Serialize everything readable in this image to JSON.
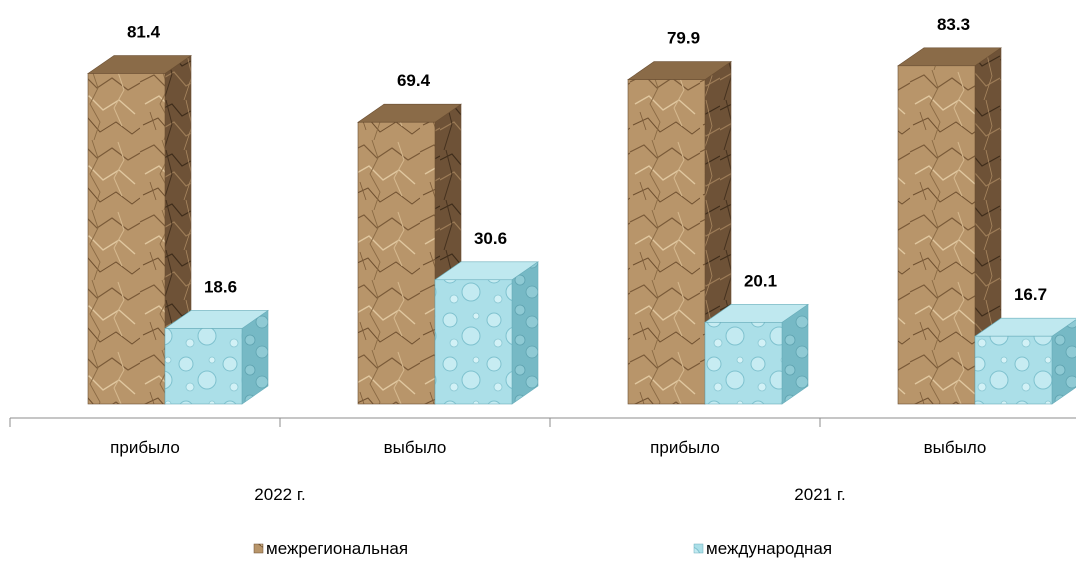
{
  "chart_data": {
    "type": "bar",
    "groups": [
      {
        "label": "2022 г.",
        "categories": [
          "прибыло",
          "выбыло"
        ]
      },
      {
        "label": "2021 г.",
        "categories": [
          "прибыло",
          "выбыло"
        ]
      }
    ],
    "categories": [
      "прибыло",
      "выбыло",
      "прибыло",
      "выбыло"
    ],
    "series": [
      {
        "name": "межрегиональная",
        "values": [
          81.4,
          69.4,
          79.9,
          83.3
        ],
        "color": "#b8956a",
        "texture": "crumpled-paper"
      },
      {
        "name": "международная",
        "values": [
          18.6,
          30.6,
          20.1,
          16.7
        ],
        "color": "#a9dde6",
        "texture": "water-droplets"
      }
    ],
    "ylim": [
      0,
      100
    ],
    "grid": false,
    "three_d": true,
    "legend_position": "bottom"
  }
}
